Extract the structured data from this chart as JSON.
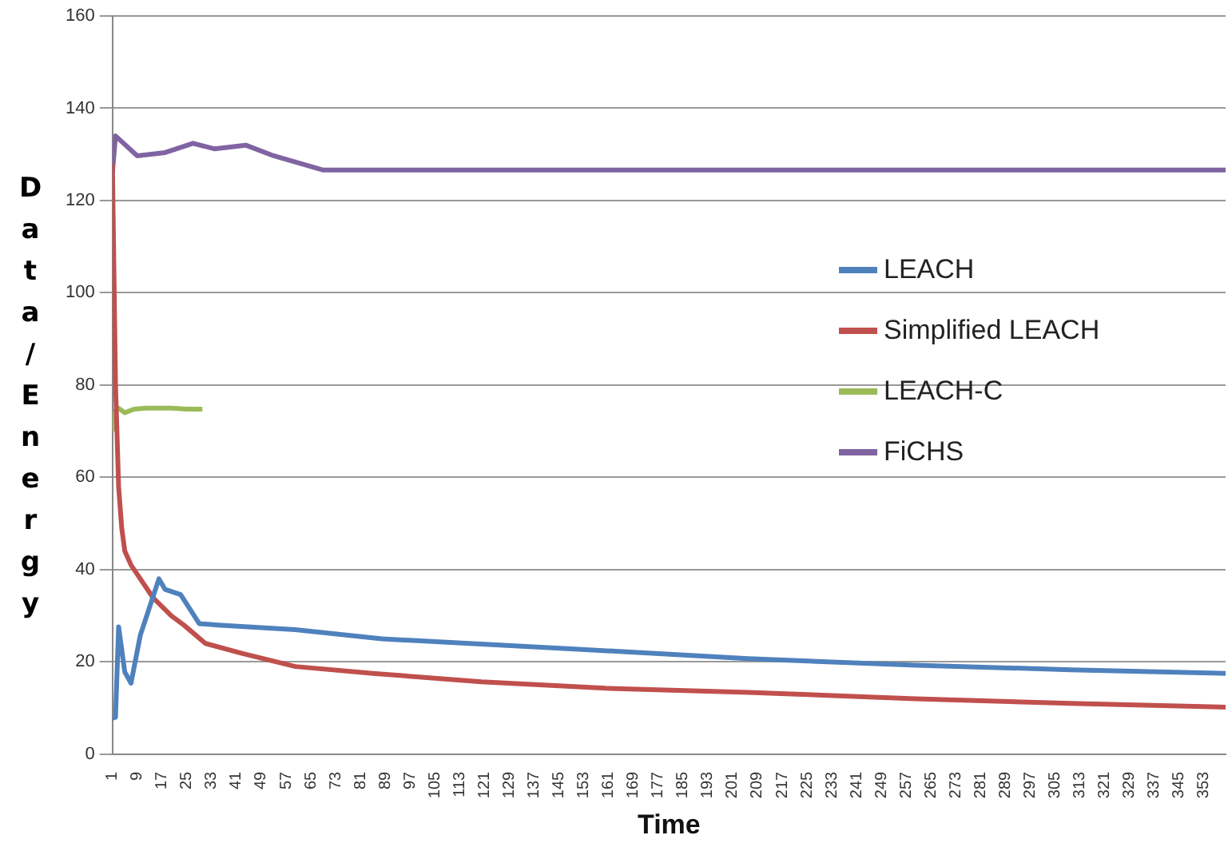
{
  "chart_data": {
    "type": "line",
    "xlabel": "Time",
    "ylabel": "Data/Energy",
    "xlim": [
      1,
      360
    ],
    "ylim": [
      0,
      160
    ],
    "yticks": [
      0,
      20,
      40,
      60,
      80,
      100,
      120,
      140,
      160
    ],
    "xticks": [
      1,
      9,
      17,
      25,
      33,
      41,
      49,
      57,
      65,
      73,
      81,
      89,
      97,
      105,
      113,
      121,
      129,
      137,
      145,
      153,
      161,
      169,
      177,
      185,
      193,
      201,
      209,
      217,
      225,
      233,
      241,
      249,
      257,
      265,
      273,
      281,
      289,
      297,
      305,
      313,
      321,
      329,
      337,
      345,
      353
    ],
    "grid": "y",
    "legend": "right",
    "marker": "none",
    "series": [
      {
        "name": "LEACH",
        "color": "#4f81bd",
        "x": [
          1,
          2,
          3,
          5,
          7,
          10,
          16,
          18,
          23,
          29,
          35,
          60,
          88,
          150,
          206,
          260,
          310,
          360
        ],
        "values": [
          7.8,
          8,
          27.6,
          17.8,
          15.4,
          25.8,
          38,
          35.7,
          34.6,
          28.3,
          28,
          27,
          25,
          22.8,
          20.7,
          19.3,
          18.3,
          17.5
        ]
      },
      {
        "name": "Simplified LEACH",
        "color": "#c0504d",
        "x": [
          1,
          2,
          3,
          4,
          5,
          7,
          9,
          14,
          20,
          24,
          31,
          43,
          60,
          85,
          120,
          160,
          206,
          260,
          310,
          360
        ],
        "values": [
          128,
          80,
          58,
          49,
          44,
          41,
          39,
          34,
          30,
          28,
          24,
          21.8,
          19,
          17.5,
          15.7,
          14.3,
          13.4,
          12,
          11,
          10.2
        ]
      },
      {
        "name": "LEACH-C",
        "color": "#9bbb59",
        "x": [
          1,
          2,
          3,
          5,
          8,
          12,
          20,
          25,
          30
        ],
        "values": [
          70,
          74.5,
          75,
          74,
          74.8,
          75,
          75,
          74.8,
          74.8
        ]
      },
      {
        "name": "FiCHS",
        "color": "#8064a2",
        "x": [
          1,
          2,
          9,
          18,
          27,
          34,
          44,
          53,
          69,
          360
        ],
        "values": [
          126,
          134,
          129.7,
          130.4,
          132.4,
          131.2,
          132,
          129.7,
          126.6,
          126.6
        ]
      }
    ]
  }
}
